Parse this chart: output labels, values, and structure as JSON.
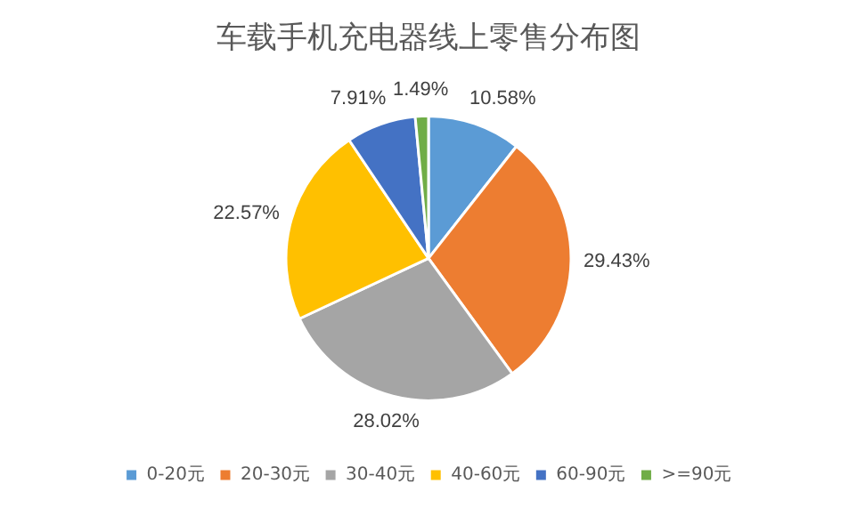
{
  "chart_data": {
    "type": "pie",
    "title": "车载手机充电器线上零售分布图",
    "categories": [
      "0-20元",
      "20-30元",
      "30-40元",
      "40-60元",
      "60-90元",
      ">=90元"
    ],
    "values": [
      10.58,
      29.43,
      28.02,
      22.57,
      7.91,
      1.49
    ],
    "value_labels": [
      "10.58%",
      "29.43%",
      "28.02%",
      "22.57%",
      "7.91%",
      "1.49%"
    ],
    "colors": [
      "#5b9bd5",
      "#ed7d31",
      "#a5a5a5",
      "#ffc000",
      "#4472c4",
      "#70ad47"
    ],
    "legend": "bottom"
  }
}
